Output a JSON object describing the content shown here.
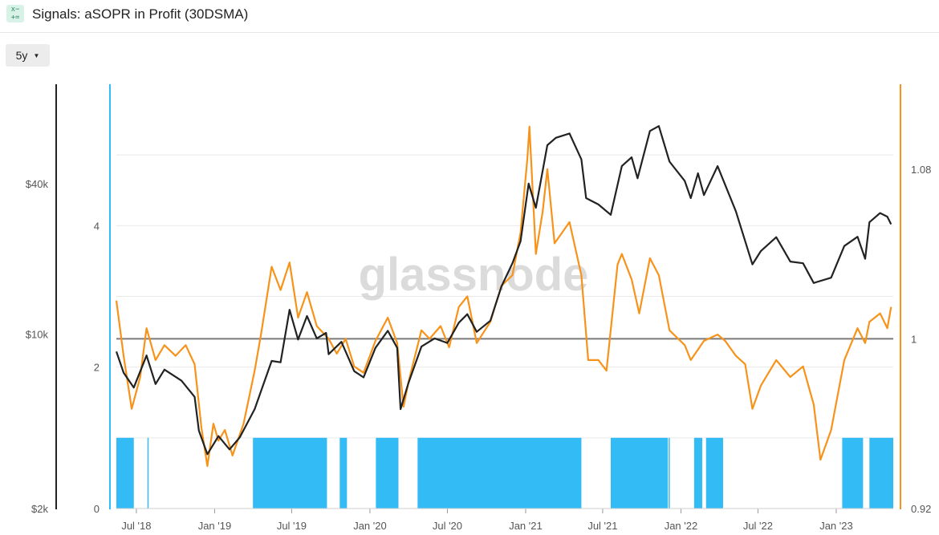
{
  "header": {
    "icon_name": "indicator-icon",
    "icon_glyph": "x− +=",
    "title": "Signals: aSOPR in Profit (30DSMA)"
  },
  "controls": {
    "range_label": "5y"
  },
  "watermark": "glassnode",
  "colors": {
    "price": "#222222",
    "asopr": "#f7931a",
    "signal": "#33bbf5",
    "threshold": "#7a7a7a",
    "axis_left": "#222222",
    "axis_mid": "#33bbf5",
    "axis_right": "#f7931a",
    "grid": "#e9e9e9"
  },
  "chart_data": {
    "type": "line",
    "title": "Signals: aSOPR in Profit (30DSMA)",
    "x_ticks": [
      "Jul '18",
      "Jan '19",
      "Jul '19",
      "Jan '20",
      "Jul '20",
      "Jan '21",
      "Jul '21",
      "Jan '22",
      "Jul '22",
      "Jan '23"
    ],
    "x_range": [
      "2018-05-15",
      "2023-05-15"
    ],
    "axes": {
      "price": {
        "scale": "log",
        "range": [
          2000,
          100000
        ],
        "ticks": [
          "$2k",
          "$10k",
          "$40k"
        ]
      },
      "signal": {
        "scale": "linear",
        "range": [
          0,
          6
        ],
        "ticks": [
          "0",
          "2",
          "4"
        ]
      },
      "asopr": {
        "scale": "linear",
        "range": [
          0.92,
          1.12
        ],
        "ticks": [
          "0.92",
          "1",
          "1.08"
        ]
      }
    },
    "grid": true,
    "threshold_line": 1,
    "series": [
      {
        "name": "",
        "axis": "price",
        "points": [
          [
            "2018-05-15",
            8500
          ],
          [
            "2018-06-01",
            7000
          ],
          [
            "2018-06-25",
            6100
          ],
          [
            "2018-07-25",
            8200
          ],
          [
            "2018-08-15",
            6300
          ],
          [
            "2018-09-05",
            7200
          ],
          [
            "2018-10-15",
            6500
          ],
          [
            "2018-11-15",
            5600
          ],
          [
            "2018-11-25",
            4100
          ],
          [
            "2018-12-15",
            3300
          ],
          [
            "2019-01-10",
            3900
          ],
          [
            "2019-02-05",
            3450
          ],
          [
            "2019-03-01",
            3850
          ],
          [
            "2019-04-05",
            5000
          ],
          [
            "2019-05-15",
            7800
          ],
          [
            "2019-06-05",
            7700
          ],
          [
            "2019-06-26",
            12500
          ],
          [
            "2019-07-16",
            9500
          ],
          [
            "2019-08-06",
            11800
          ],
          [
            "2019-08-29",
            9600
          ],
          [
            "2019-09-20",
            10100
          ],
          [
            "2019-09-26",
            8300
          ],
          [
            "2019-10-26",
            9300
          ],
          [
            "2019-11-25",
            7100
          ],
          [
            "2019-12-17",
            6700
          ],
          [
            "2020-01-14",
            8800
          ],
          [
            "2020-02-12",
            10300
          ],
          [
            "2020-03-05",
            8800
          ],
          [
            "2020-03-13",
            5000
          ],
          [
            "2020-04-01",
            6400
          ],
          [
            "2020-05-01",
            8900
          ],
          [
            "2020-06-01",
            9600
          ],
          [
            "2020-07-01",
            9200
          ],
          [
            "2020-07-28",
            11100
          ],
          [
            "2020-08-17",
            12000
          ],
          [
            "2020-09-08",
            10200
          ],
          [
            "2020-10-10",
            11300
          ],
          [
            "2020-11-05",
            15500
          ],
          [
            "2020-12-01",
            19200
          ],
          [
            "2020-12-20",
            23500
          ],
          [
            "2021-01-08",
            40000
          ],
          [
            "2021-01-25",
            32000
          ],
          [
            "2021-02-21",
            57000
          ],
          [
            "2021-03-13",
            61000
          ],
          [
            "2021-04-14",
            63500
          ],
          [
            "2021-05-12",
            50000
          ],
          [
            "2021-05-23",
            35000
          ],
          [
            "2021-06-21",
            33000
          ],
          [
            "2021-07-20",
            30000
          ],
          [
            "2021-08-15",
            47000
          ],
          [
            "2021-09-07",
            51000
          ],
          [
            "2021-09-21",
            42000
          ],
          [
            "2021-10-20",
            65000
          ],
          [
            "2021-11-10",
            68000
          ],
          [
            "2021-12-05",
            49000
          ],
          [
            "2022-01-10",
            41000
          ],
          [
            "2022-01-24",
            35000
          ],
          [
            "2022-02-10",
            44000
          ],
          [
            "2022-02-24",
            36000
          ],
          [
            "2022-03-28",
            47000
          ],
          [
            "2022-05-10",
            31000
          ],
          [
            "2022-06-18",
            19000
          ],
          [
            "2022-07-08",
            21500
          ],
          [
            "2022-08-13",
            24400
          ],
          [
            "2022-09-15",
            19500
          ],
          [
            "2022-10-15",
            19200
          ],
          [
            "2022-11-09",
            16000
          ],
          [
            "2022-12-20",
            16800
          ],
          [
            "2023-01-20",
            22500
          ],
          [
            "2023-02-20",
            24500
          ],
          [
            "2023-03-10",
            20000
          ],
          [
            "2023-03-20",
            28000
          ],
          [
            "2023-04-14",
            30500
          ],
          [
            "2023-05-01",
            29500
          ],
          [
            "2023-05-10",
            27500
          ]
        ]
      },
      {
        "name": "",
        "axis": "asopr",
        "points": [
          [
            "2018-05-15",
            1.018
          ],
          [
            "2018-06-01",
            0.992
          ],
          [
            "2018-06-20",
            0.967
          ],
          [
            "2018-07-10",
            0.982
          ],
          [
            "2018-07-25",
            1.005
          ],
          [
            "2018-08-15",
            0.99
          ],
          [
            "2018-09-05",
            0.997
          ],
          [
            "2018-10-01",
            0.992
          ],
          [
            "2018-10-25",
            0.997
          ],
          [
            "2018-11-15",
            0.988
          ],
          [
            "2018-12-01",
            0.958
          ],
          [
            "2018-12-15",
            0.94
          ],
          [
            "2018-12-29",
            0.96
          ],
          [
            "2019-01-10",
            0.952
          ],
          [
            "2019-01-25",
            0.957
          ],
          [
            "2019-02-12",
            0.945
          ],
          [
            "2019-03-10",
            0.96
          ],
          [
            "2019-04-05",
            0.985
          ],
          [
            "2019-04-20",
            1.002
          ],
          [
            "2019-05-15",
            1.034
          ],
          [
            "2019-06-05",
            1.023
          ],
          [
            "2019-06-26",
            1.036
          ],
          [
            "2019-07-16",
            1.01
          ],
          [
            "2019-08-06",
            1.022
          ],
          [
            "2019-08-29",
            1.006
          ],
          [
            "2019-09-26",
            1.0
          ],
          [
            "2019-10-15",
            0.993
          ],
          [
            "2019-11-05",
            1.0
          ],
          [
            "2019-11-25",
            0.987
          ],
          [
            "2019-12-17",
            0.984
          ],
          [
            "2020-01-14",
            0.999
          ],
          [
            "2020-02-12",
            1.01
          ],
          [
            "2020-03-05",
            0.998
          ],
          [
            "2020-03-20",
            0.968
          ],
          [
            "2020-04-01",
            0.98
          ],
          [
            "2020-05-01",
            1.004
          ],
          [
            "2020-05-20",
            1.0
          ],
          [
            "2020-06-15",
            1.006
          ],
          [
            "2020-07-05",
            0.996
          ],
          [
            "2020-07-28",
            1.015
          ],
          [
            "2020-08-17",
            1.02
          ],
          [
            "2020-09-08",
            0.998
          ],
          [
            "2020-10-10",
            1.008
          ],
          [
            "2020-11-05",
            1.025
          ],
          [
            "2020-12-01",
            1.03
          ],
          [
            "2020-12-20",
            1.05
          ],
          [
            "2021-01-05",
            1.085
          ],
          [
            "2021-01-10",
            1.1
          ],
          [
            "2021-01-25",
            1.04
          ],
          [
            "2021-02-10",
            1.06
          ],
          [
            "2021-02-21",
            1.08
          ],
          [
            "2021-03-10",
            1.045
          ],
          [
            "2021-04-14",
            1.055
          ],
          [
            "2021-05-12",
            1.03
          ],
          [
            "2021-05-28",
            0.99
          ],
          [
            "2021-06-21",
            0.99
          ],
          [
            "2021-07-10",
            0.985
          ],
          [
            "2021-08-05",
            1.035
          ],
          [
            "2021-08-15",
            1.04
          ],
          [
            "2021-09-07",
            1.028
          ],
          [
            "2021-09-25",
            1.012
          ],
          [
            "2021-10-20",
            1.038
          ],
          [
            "2021-11-10",
            1.03
          ],
          [
            "2021-12-05",
            1.004
          ],
          [
            "2022-01-10",
            0.997
          ],
          [
            "2022-01-24",
            0.99
          ],
          [
            "2022-02-24",
            0.999
          ],
          [
            "2022-03-28",
            1.002
          ],
          [
            "2022-04-15",
            0.999
          ],
          [
            "2022-05-10",
            0.992
          ],
          [
            "2022-06-01",
            0.988
          ],
          [
            "2022-06-18",
            0.967
          ],
          [
            "2022-07-08",
            0.978
          ],
          [
            "2022-08-13",
            0.99
          ],
          [
            "2022-09-15",
            0.982
          ],
          [
            "2022-10-15",
            0.987
          ],
          [
            "2022-11-09",
            0.969
          ],
          [
            "2022-11-25",
            0.943
          ],
          [
            "2022-12-20",
            0.957
          ],
          [
            "2023-01-20",
            0.99
          ],
          [
            "2023-02-20",
            1.005
          ],
          [
            "2023-03-10",
            0.998
          ],
          [
            "2023-03-20",
            1.008
          ],
          [
            "2023-04-14",
            1.012
          ],
          [
            "2023-05-01",
            1.005
          ],
          [
            "2023-05-10",
            1.015
          ]
        ]
      }
    ],
    "signal_periods": [
      [
        "2018-05-15",
        "2018-06-25"
      ],
      [
        "2018-07-27",
        "2018-07-29"
      ],
      [
        "2019-04-01",
        "2019-09-22"
      ],
      [
        "2019-10-22",
        "2019-11-08"
      ],
      [
        "2020-01-15",
        "2020-03-08"
      ],
      [
        "2020-04-22",
        "2021-05-12"
      ],
      [
        "2021-07-20",
        "2021-12-01"
      ],
      [
        "2021-12-03",
        "2021-12-05"
      ],
      [
        "2022-02-01",
        "2022-02-20"
      ],
      [
        "2022-03-01",
        "2022-04-10"
      ],
      [
        "2023-01-15",
        "2023-03-05"
      ],
      [
        "2023-03-20",
        "2023-05-15"
      ]
    ]
  }
}
